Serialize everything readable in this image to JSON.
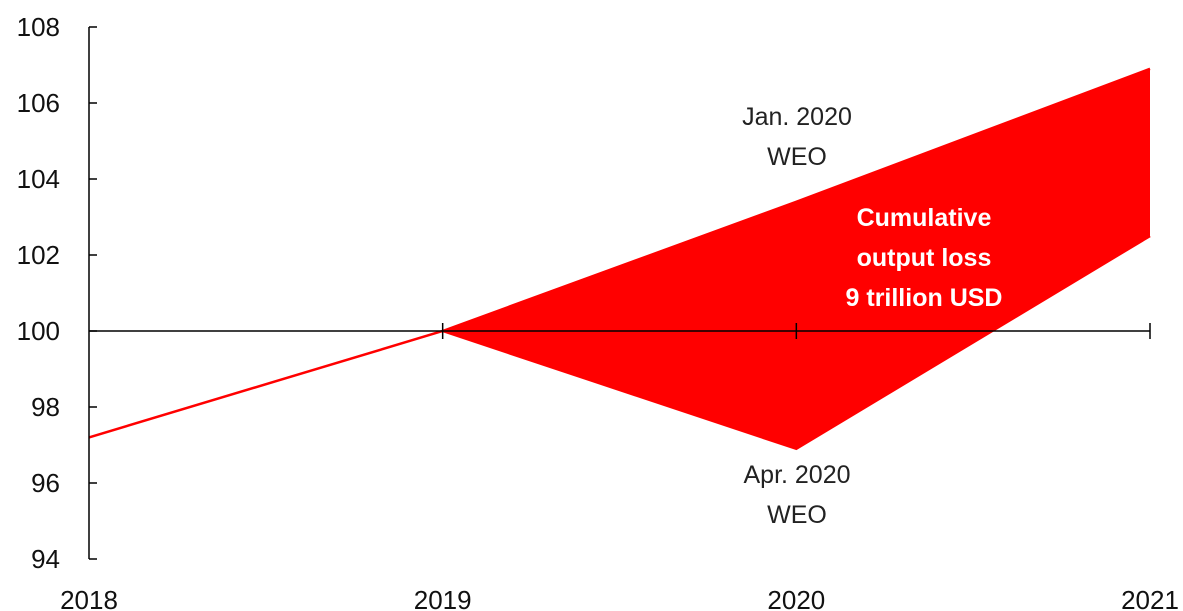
{
  "chart_data": {
    "type": "area",
    "x": [
      2018,
      2019,
      2020,
      2021
    ],
    "x_tick_labels": [
      "2018",
      "2019",
      "2020",
      "2021"
    ],
    "y_tick_labels": [
      "94",
      "96",
      "98",
      "100",
      "102",
      "104",
      "106",
      "108"
    ],
    "ylim": [
      94,
      108
    ],
    "xlim": [
      2018,
      2021
    ],
    "baseline": 100,
    "grid": false,
    "series": [
      {
        "values": [
          97.2,
          100,
          103.4,
          106.9
        ]
      },
      {
        "values": [
          null,
          100,
          96.9,
          102.5
        ]
      }
    ],
    "shaded_region": {
      "between_series": [
        0,
        1
      ],
      "from": 2019,
      "to": 2021
    },
    "colors": {
      "line": "#ff0000",
      "fill": "#ff0000",
      "axis": "#000000",
      "inside_text": "#ffffff"
    },
    "annotations": {
      "jan_line1": "Jan. 2020",
      "jan_line2": "WEO",
      "apr_line1": "Apr. 2020",
      "apr_line2": "WEO",
      "loss_line1": "Cumulative",
      "loss_line2": "output loss",
      "loss_line3": "9 trillion USD"
    }
  }
}
